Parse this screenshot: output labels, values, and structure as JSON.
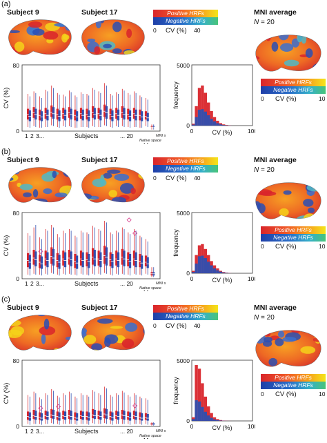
{
  "panels": [
    {
      "label": "(a)",
      "subject_a": "Subject 9",
      "subject_b": "Subject 17",
      "mni_title": "MNI average",
      "mni_n_var": "N",
      "mni_n_val": "= 20",
      "legend_pos": "Positive HRFs",
      "legend_neg": "Negative HRFs",
      "scale_min": "0",
      "scale_max": "40",
      "scale_label": "CV (%)",
      "mni_scale_min": "0",
      "mni_scale_max": "10",
      "box_ymax": "80",
      "box_ymin": "0",
      "box_ylabel": "CV (%)",
      "x_1": "1",
      "x_2": "2",
      "x_3": "3...",
      "x_subjects": "Subjects",
      "x_20": "... 20",
      "x_native": "Native space",
      "x_means": "Means",
      "x_mni": "MNI space",
      "hist_ymax": "5000",
      "hist_ymin": "0",
      "hist_ylabel": "frequency",
      "hist_xmin": "0",
      "hist_xmax": "100",
      "hist_xlabel": "CV (%)"
    },
    {
      "label": "(b)",
      "subject_a": "Subject 9",
      "subject_b": "Subject 17",
      "mni_title": "MNI average",
      "mni_n_var": "N",
      "mni_n_val": "= 20",
      "legend_pos": "Positive HRFs",
      "legend_neg": "Negative HRFs",
      "scale_min": "0",
      "scale_max": "40",
      "scale_label": "CV (%)",
      "mni_scale_min": "0",
      "mni_scale_max": "10",
      "box_ymax": "80",
      "box_ymin": "0",
      "box_ylabel": "CV (%)",
      "x_1": "1",
      "x_2": "2",
      "x_3": "3...",
      "x_subjects": "Subjects",
      "x_20": "... 20",
      "x_native": "Native space",
      "x_means": "Means",
      "x_mni": "MNI space",
      "hist_ymax": "5000",
      "hist_ymin": "0",
      "hist_ylabel": "frequency",
      "hist_xmin": "0",
      "hist_xmax": "100",
      "hist_xlabel": "CV (%)"
    },
    {
      "label": "(c)",
      "subject_a": "Subject 9",
      "subject_b": "Subject 17",
      "mni_title": "MNI average",
      "mni_n_var": "N",
      "mni_n_val": "= 20",
      "legend_pos": "Positive HRFs",
      "legend_neg": "Negative HRFs",
      "scale_min": "0",
      "scale_max": "40",
      "scale_label": "CV (%)",
      "mni_scale_min": "0",
      "mni_scale_max": "10",
      "box_ymax": "80",
      "box_ymin": "0",
      "box_ylabel": "CV (%)",
      "x_1": "1",
      "x_2": "2",
      "x_3": "3...",
      "x_subjects": "Subjects",
      "x_20": "... 20",
      "x_native": "Native space",
      "x_means": "Means",
      "x_mni": "MNI space",
      "hist_ymax": "5000",
      "hist_ymin": "0",
      "hist_ylabel": "frequency",
      "hist_xmin": "0",
      "hist_xmax": "100",
      "hist_xlabel": "CV (%)"
    }
  ],
  "colors": {
    "positive": "#d9252b",
    "negative": "#2f4fb0",
    "diamond": "#d83a8a"
  },
  "chart_data": [
    {
      "type": "histogram",
      "panel": "(a)",
      "series": [
        {
          "name": "Positive HRFs",
          "color": "#d9252b",
          "x": [
            0,
            5,
            10,
            15,
            20,
            25,
            30,
            35,
            40,
            45,
            50,
            55,
            60
          ],
          "values": [
            150,
            1600,
            3100,
            3300,
            2700,
            1900,
            1200,
            700,
            400,
            200,
            100,
            50,
            20
          ]
        },
        {
          "name": "Negative HRFs",
          "color": "#2f4fb0",
          "x": [
            0,
            5,
            10,
            15,
            20,
            25,
            30,
            35,
            40,
            45,
            50,
            55,
            60
          ],
          "values": [
            80,
            700,
            1300,
            1350,
            1150,
            850,
            550,
            350,
            200,
            100,
            50,
            20,
            10
          ]
        }
      ]
    },
    {
      "type": "histogram",
      "panel": "(b)",
      "series": [
        {
          "name": "Positive HRFs",
          "color": "#d9252b",
          "x": [
            0,
            5,
            10,
            15,
            20,
            25,
            30,
            35,
            40,
            45,
            50,
            55,
            60
          ],
          "values": [
            200,
            1500,
            2300,
            2400,
            2000,
            1500,
            1000,
            650,
            400,
            200,
            100,
            50,
            20
          ]
        },
        {
          "name": "Negative HRFs",
          "color": "#2f4fb0",
          "x": [
            0,
            5,
            10,
            15,
            20,
            25,
            30,
            35,
            40,
            45,
            50,
            55,
            60
          ],
          "values": [
            100,
            800,
            1400,
            1450,
            1250,
            950,
            650,
            400,
            250,
            130,
            60,
            30,
            10
          ]
        }
      ]
    },
    {
      "type": "histogram",
      "panel": "(c)",
      "series": [
        {
          "name": "Positive HRFs",
          "color": "#d9252b",
          "x": [
            0,
            5,
            10,
            15,
            20,
            25,
            30,
            35,
            40,
            45,
            50,
            55,
            60
          ],
          "values": [
            300,
            4600,
            4300,
            3100,
            2000,
            1200,
            650,
            300,
            150,
            70,
            30,
            10,
            5
          ]
        },
        {
          "name": "Negative HRFs",
          "color": "#2f4fb0",
          "x": [
            0,
            5,
            10,
            15,
            20,
            25,
            30,
            35,
            40,
            45,
            50,
            55,
            60
          ],
          "values": [
            150,
            1700,
            1600,
            1150,
            750,
            450,
            250,
            120,
            60,
            30,
            15,
            5,
            2
          ]
        }
      ]
    },
    {
      "type": "box",
      "panel": "(a)",
      "ylim": [
        0,
        80
      ],
      "series": [
        {
          "name": "Positive HRFs",
          "color": "#d9252b",
          "q1": [
            14,
            16,
            13,
            15,
            17,
            14,
            15,
            16,
            13,
            15,
            14,
            16,
            15,
            17,
            14,
            15,
            16,
            14,
            15,
            13,
            14,
            15
          ],
          "med": [
            20,
            22,
            19,
            21,
            23,
            20,
            21,
            22,
            19,
            21,
            20,
            22,
            21,
            24,
            20,
            21,
            22,
            20,
            21,
            19,
            18,
            4
          ],
          "q3": [
            27,
            29,
            26,
            28,
            31,
            27,
            28,
            29,
            26,
            28,
            27,
            30,
            28,
            32,
            27,
            28,
            30,
            27,
            28,
            26,
            24,
            6
          ],
          "max": [
            45,
            48,
            42,
            50,
            55,
            46,
            44,
            49,
            43,
            47,
            45,
            52,
            48,
            58,
            45,
            47,
            51,
            46,
            48,
            43,
            40,
            8
          ],
          "min": [
            5,
            6,
            4,
            5,
            7,
            5,
            6,
            6,
            4,
            5,
            5,
            6,
            5,
            7,
            5,
            6,
            6,
            5,
            5,
            4,
            6,
            2
          ]
        },
        {
          "name": "Negative HRFs",
          "color": "#2f4fb0",
          "q1": [
            12,
            14,
            12,
            13,
            15,
            12,
            13,
            14,
            12,
            13,
            12,
            14,
            13,
            15,
            12,
            13,
            14,
            12,
            13,
            12,
            12,
            13
          ],
          "med": [
            18,
            20,
            17,
            19,
            21,
            18,
            19,
            20,
            17,
            19,
            18,
            20,
            19,
            22,
            18,
            19,
            20,
            18,
            19,
            17,
            16,
            4
          ],
          "q3": [
            25,
            27,
            24,
            26,
            29,
            25,
            26,
            27,
            24,
            26,
            25,
            28,
            26,
            30,
            25,
            26,
            28,
            25,
            26,
            24,
            22,
            6
          ],
          "max": [
            42,
            46,
            40,
            48,
            52,
            44,
            42,
            47,
            41,
            45,
            43,
            50,
            46,
            55,
            43,
            45,
            49,
            44,
            46,
            41,
            38,
            8
          ],
          "min": [
            4,
            5,
            4,
            5,
            6,
            4,
            5,
            5,
            4,
            5,
            4,
            5,
            5,
            6,
            4,
            5,
            5,
            4,
            5,
            4,
            5,
            2
          ]
        }
      ]
    },
    {
      "type": "box",
      "panel": "(b)",
      "ylim": [
        0,
        80
      ],
      "series": [
        {
          "name": "Positive HRFs",
          "color": "#d9252b",
          "q1": [
            14,
            17,
            13,
            16,
            18,
            14,
            16,
            17,
            13,
            16,
            15,
            17,
            16,
            18,
            15,
            16,
            17,
            15,
            16,
            14,
            15,
            4
          ],
          "med": [
            22,
            25,
            20,
            24,
            27,
            22,
            24,
            25,
            21,
            24,
            23,
            26,
            24,
            28,
            23,
            24,
            26,
            23,
            24,
            21,
            20,
            6
          ],
          "q3": [
            31,
            35,
            29,
            34,
            38,
            31,
            34,
            35,
            30,
            34,
            32,
            37,
            34,
            40,
            32,
            34,
            36,
            32,
            34,
            30,
            28,
            8
          ],
          "max": [
            55,
            62,
            50,
            60,
            65,
            54,
            58,
            60,
            52,
            58,
            56,
            64,
            60,
            70,
            56,
            58,
            62,
            56,
            60,
            52,
            48,
            14
          ],
          "min": [
            5,
            6,
            5,
            6,
            7,
            5,
            6,
            6,
            5,
            6,
            5,
            6,
            6,
            7,
            5,
            6,
            6,
            5,
            6,
            5,
            6,
            2
          ]
        },
        {
          "name": "Negative HRFs",
          "color": "#2f4fb0",
          "q1": [
            12,
            15,
            12,
            14,
            16,
            12,
            14,
            15,
            12,
            14,
            13,
            15,
            14,
            16,
            13,
            14,
            15,
            13,
            14,
            12,
            13,
            4
          ],
          "med": [
            20,
            23,
            18,
            22,
            25,
            20,
            22,
            23,
            19,
            22,
            21,
            24,
            22,
            26,
            21,
            22,
            24,
            21,
            22,
            19,
            18,
            6
          ],
          "q3": [
            29,
            33,
            27,
            32,
            36,
            29,
            32,
            33,
            28,
            32,
            30,
            35,
            32,
            38,
            30,
            32,
            34,
            30,
            32,
            28,
            26,
            8
          ],
          "max": [
            52,
            65,
            48,
            58,
            62,
            50,
            55,
            58,
            50,
            56,
            54,
            62,
            58,
            68,
            54,
            56,
            60,
            54,
            58,
            50,
            45,
            14
          ],
          "min": [
            4,
            5,
            4,
            5,
            6,
            4,
            5,
            5,
            4,
            5,
            4,
            5,
            5,
            6,
            4,
            5,
            5,
            4,
            5,
            4,
            5,
            2
          ]
        }
      ],
      "outlier_markers": [
        {
          "subject": 3,
          "value": 33
        },
        {
          "subject": 18,
          "value": 71
        },
        {
          "subject": 19,
          "value": 55
        }
      ]
    },
    {
      "type": "box",
      "panel": "(c)",
      "ylim": [
        0,
        80
      ],
      "series": [
        {
          "name": "Positive HRFs",
          "color": "#d9252b",
          "q1": [
            8,
            9,
            8,
            9,
            10,
            8,
            9,
            9,
            8,
            9,
            8,
            10,
            9,
            10,
            8,
            9,
            9,
            8,
            9,
            8,
            8,
            2
          ],
          "med": [
            12,
            13,
            11,
            13,
            14,
            12,
            13,
            13,
            11,
            13,
            12,
            14,
            13,
            15,
            12,
            13,
            14,
            12,
            13,
            11,
            11,
            3
          ],
          "q3": [
            18,
            20,
            17,
            19,
            21,
            18,
            19,
            20,
            17,
            19,
            18,
            21,
            19,
            22,
            18,
            19,
            20,
            18,
            19,
            17,
            16,
            4
          ],
          "max": [
            38,
            42,
            35,
            40,
            45,
            37,
            40,
            42,
            36,
            40,
            38,
            44,
            40,
            48,
            38,
            40,
            43,
            38,
            40,
            36,
            34,
            5
          ],
          "min": [
            3,
            3,
            3,
            3,
            4,
            3,
            3,
            3,
            3,
            3,
            3,
            4,
            3,
            4,
            3,
            3,
            3,
            3,
            3,
            3,
            3,
            1
          ]
        },
        {
          "name": "Negative HRFs",
          "color": "#2f4fb0",
          "q1": [
            7,
            8,
            7,
            8,
            9,
            7,
            8,
            8,
            7,
            8,
            7,
            9,
            8,
            9,
            7,
            8,
            8,
            7,
            8,
            7,
            7,
            2
          ],
          "med": [
            11,
            12,
            10,
            12,
            13,
            11,
            12,
            12,
            10,
            12,
            11,
            13,
            12,
            14,
            11,
            12,
            13,
            11,
            12,
            10,
            10,
            3
          ],
          "q3": [
            17,
            19,
            16,
            18,
            20,
            17,
            18,
            19,
            16,
            18,
            17,
            20,
            18,
            21,
            17,
            18,
            19,
            17,
            18,
            16,
            15,
            4
          ],
          "max": [
            36,
            40,
            33,
            38,
            43,
            35,
            38,
            40,
            34,
            38,
            36,
            42,
            38,
            46,
            36,
            38,
            41,
            36,
            38,
            34,
            32,
            5
          ],
          "min": [
            2,
            3,
            2,
            3,
            3,
            2,
            3,
            3,
            2,
            3,
            2,
            3,
            3,
            3,
            2,
            3,
            3,
            2,
            3,
            2,
            2,
            1
          ]
        }
      ],
      "outlier_markers": [
        {
          "subject": 3,
          "value": 22
        },
        {
          "subject": 6,
          "value": 24
        },
        {
          "subject": 19,
          "value": 25
        }
      ]
    }
  ]
}
